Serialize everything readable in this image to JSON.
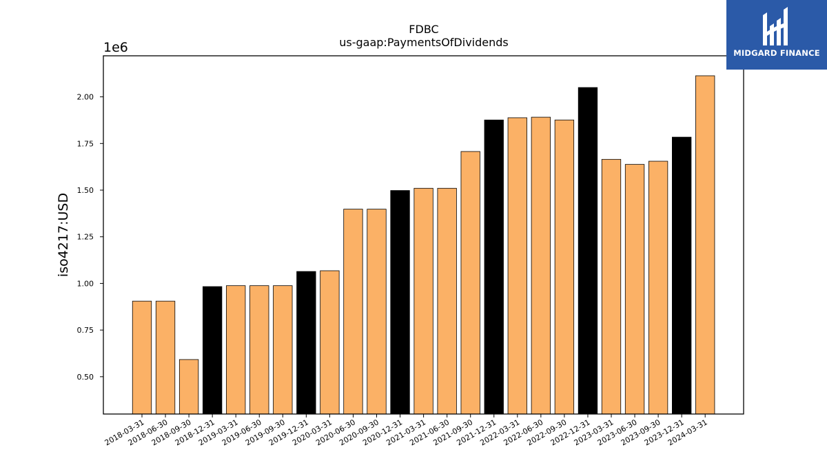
{
  "chart_data": {
    "type": "bar",
    "title": "FDBC",
    "subtitle": "us-gaap:PaymentsOfDividends",
    "ylabel": "iso4217:USD",
    "xlabel": "",
    "offset_text": "1e6",
    "ylim": [
      0.3,
      2.22
    ],
    "yticks": [
      "0.50",
      "0.75",
      "1.00",
      "1.25",
      "1.50",
      "1.75",
      "2.00"
    ],
    "categories": [
      "2018-03-31",
      "2018-06-30",
      "2018-09-30",
      "2018-12-31",
      "2019-03-31",
      "2019-06-30",
      "2019-09-30",
      "2019-12-31",
      "2020-03-31",
      "2020-06-30",
      "2020-09-30",
      "2020-12-31",
      "2021-03-31",
      "2021-06-30",
      "2021-09-30",
      "2021-12-31",
      "2022-03-31",
      "2022-06-30",
      "2022-09-30",
      "2022-12-31",
      "2023-03-31",
      "2023-06-30",
      "2023-09-30",
      "2023-12-31",
      "2024-03-31"
    ],
    "values": [
      0.905,
      0.905,
      0.592,
      0.983,
      0.988,
      0.988,
      0.988,
      1.064,
      1.068,
      1.398,
      1.398,
      1.498,
      1.51,
      1.51,
      1.707,
      1.876,
      1.888,
      1.891,
      1.876,
      2.05,
      1.665,
      1.638,
      1.655,
      1.784,
      2.113
    ],
    "highlight_color": "#000000",
    "bar_color": "#fbb166",
    "highlight_indices": [
      3,
      7,
      11,
      15,
      19,
      23
    ]
  },
  "logo": {
    "text": "MIDGARD FINANCE",
    "background": "#2b5aa8"
  }
}
